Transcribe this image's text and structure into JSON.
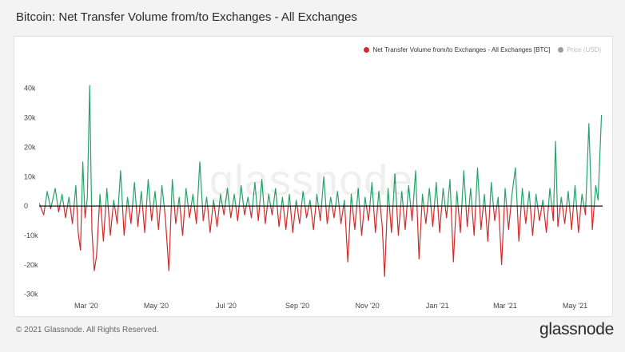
{
  "title": "Bitcoin: Net Transfer Volume from/to Exchanges - All Exchanges",
  "watermark": "glassnode",
  "footer": {
    "copyright": "© 2021 Glassnode. All Rights Reserved.",
    "logo": "glassnode"
  },
  "legend": {
    "series_label": "Net Transfer Volume from/to Exchanges - All Exchanges [BTC]",
    "price_label": "Price (USD)"
  },
  "colors": {
    "positive": "#26a36a",
    "negative": "#d12a2a",
    "legend_dot": "#d62828",
    "price_dot": "#9e9e9e",
    "zero_line": "#111111"
  },
  "chart_data": {
    "type": "line",
    "title": "Bitcoin: Net Transfer Volume from/to Exchanges - All Exchanges",
    "xlabel": "",
    "ylabel": "",
    "x_start": "2020-01-20",
    "x_end": "2021-05-25",
    "ylim": [
      -32000,
      44000
    ],
    "yticks": [
      40000,
      30000,
      20000,
      10000,
      0,
      -10000,
      -20000,
      -30000
    ],
    "ytick_labels": [
      "40k",
      "30k",
      "20k",
      "10k",
      "0",
      "-10k",
      "-20k",
      "-30k"
    ],
    "xticks": [
      "2020-03-01",
      "2020-05-01",
      "2020-07-01",
      "2020-09-01",
      "2020-11-01",
      "2021-01-01",
      "2021-03-01",
      "2021-05-01"
    ],
    "xtick_labels": [
      "Mar '20",
      "May '20",
      "Jul '20",
      "Sep '20",
      "Nov '20",
      "Jan '21",
      "Mar '21",
      "May '21"
    ],
    "grid": false,
    "legend_position": "top-right",
    "series": [
      {
        "name": "Net Transfer Volume from/to Exchanges - All Exchanges [BTC]",
        "points": [
          [
            "2020-01-20",
            1000
          ],
          [
            "2020-01-24",
            -3000
          ],
          [
            "2020-01-27",
            5000
          ],
          [
            "2020-01-30",
            -1000
          ],
          [
            "2020-02-03",
            6000
          ],
          [
            "2020-02-06",
            -2000
          ],
          [
            "2020-02-09",
            4000
          ],
          [
            "2020-02-12",
            -4000
          ],
          [
            "2020-02-15",
            3000
          ],
          [
            "2020-02-18",
            -6000
          ],
          [
            "2020-02-21",
            7000
          ],
          [
            "2020-02-23",
            -9000
          ],
          [
            "2020-02-25",
            -15000
          ],
          [
            "2020-02-27",
            15000
          ],
          [
            "2020-02-29",
            -4000
          ],
          [
            "2020-03-02",
            3000
          ],
          [
            "2020-03-04",
            41000
          ],
          [
            "2020-03-06",
            -8000
          ],
          [
            "2020-03-08",
            -22000
          ],
          [
            "2020-03-10",
            -17000
          ],
          [
            "2020-03-13",
            4000
          ],
          [
            "2020-03-16",
            -12000
          ],
          [
            "2020-03-19",
            6000
          ],
          [
            "2020-03-22",
            -10000
          ],
          [
            "2020-03-25",
            2000
          ],
          [
            "2020-03-28",
            -6000
          ],
          [
            "2020-03-31",
            12000
          ],
          [
            "2020-04-03",
            -10000
          ],
          [
            "2020-04-06",
            3000
          ],
          [
            "2020-04-09",
            -6000
          ],
          [
            "2020-04-12",
            8000
          ],
          [
            "2020-04-15",
            -7000
          ],
          [
            "2020-04-18",
            5000
          ],
          [
            "2020-04-21",
            -9000
          ],
          [
            "2020-04-24",
            9000
          ],
          [
            "2020-04-27",
            -5000
          ],
          [
            "2020-04-30",
            5000
          ],
          [
            "2020-05-03",
            -8000
          ],
          [
            "2020-05-06",
            7000
          ],
          [
            "2020-05-09",
            -4000
          ],
          [
            "2020-05-12",
            -22000
          ],
          [
            "2020-05-15",
            9000
          ],
          [
            "2020-05-18",
            -6000
          ],
          [
            "2020-05-21",
            3000
          ],
          [
            "2020-05-24",
            -10000
          ],
          [
            "2020-05-27",
            6000
          ],
          [
            "2020-05-30",
            -4000
          ],
          [
            "2020-06-02",
            4000
          ],
          [
            "2020-06-05",
            -6000
          ],
          [
            "2020-06-08",
            15000
          ],
          [
            "2020-06-11",
            -5000
          ],
          [
            "2020-06-14",
            3000
          ],
          [
            "2020-06-17",
            -9000
          ],
          [
            "2020-06-20",
            2000
          ],
          [
            "2020-06-23",
            -7000
          ],
          [
            "2020-06-26",
            4000
          ],
          [
            "2020-06-29",
            -3000
          ],
          [
            "2020-07-02",
            6000
          ],
          [
            "2020-07-05",
            -4000
          ],
          [
            "2020-07-08",
            4000
          ],
          [
            "2020-07-11",
            -5000
          ],
          [
            "2020-07-14",
            7000
          ],
          [
            "2020-07-17",
            -3000
          ],
          [
            "2020-07-20",
            3000
          ],
          [
            "2020-07-23",
            -4000
          ],
          [
            "2020-07-26",
            8000
          ],
          [
            "2020-07-29",
            -5000
          ],
          [
            "2020-08-01",
            9000
          ],
          [
            "2020-08-04",
            -6000
          ],
          [
            "2020-08-07",
            4000
          ],
          [
            "2020-08-10",
            -3000
          ],
          [
            "2020-08-13",
            6000
          ],
          [
            "2020-08-16",
            -7000
          ],
          [
            "2020-08-19",
            3000
          ],
          [
            "2020-08-22",
            -8000
          ],
          [
            "2020-08-25",
            4000
          ],
          [
            "2020-08-28",
            -9000
          ],
          [
            "2020-08-31",
            2000
          ],
          [
            "2020-09-03",
            -6000
          ],
          [
            "2020-09-06",
            5000
          ],
          [
            "2020-09-09",
            -4000
          ],
          [
            "2020-09-12",
            2000
          ],
          [
            "2020-09-15",
            -8000
          ],
          [
            "2020-09-18",
            4000
          ],
          [
            "2020-09-21",
            -5000
          ],
          [
            "2020-09-24",
            10000
          ],
          [
            "2020-09-27",
            -6000
          ],
          [
            "2020-09-30",
            3000
          ],
          [
            "2020-10-03",
            -4000
          ],
          [
            "2020-10-06",
            5000
          ],
          [
            "2020-10-09",
            -6000
          ],
          [
            "2020-10-12",
            2000
          ],
          [
            "2020-10-15",
            -19000
          ],
          [
            "2020-10-18",
            4000
          ],
          [
            "2020-10-21",
            -8000
          ],
          [
            "2020-10-24",
            6000
          ],
          [
            "2020-10-27",
            -10000
          ],
          [
            "2020-10-30",
            3000
          ],
          [
            "2020-11-02",
            -5000
          ],
          [
            "2020-11-05",
            8000
          ],
          [
            "2020-11-08",
            -9000
          ],
          [
            "2020-11-11",
            5000
          ],
          [
            "2020-11-14",
            -7000
          ],
          [
            "2020-11-16",
            -24000
          ],
          [
            "2020-11-19",
            6000
          ],
          [
            "2020-11-22",
            -9000
          ],
          [
            "2020-11-25",
            11000
          ],
          [
            "2020-11-28",
            -10000
          ],
          [
            "2020-12-01",
            5000
          ],
          [
            "2020-12-04",
            -8000
          ],
          [
            "2020-12-07",
            7000
          ],
          [
            "2020-12-10",
            -5000
          ],
          [
            "2020-12-13",
            12000
          ],
          [
            "2020-12-16",
            -18000
          ],
          [
            "2020-12-19",
            4000
          ],
          [
            "2020-12-22",
            -6000
          ],
          [
            "2020-12-25",
            6000
          ],
          [
            "2020-12-28",
            -7000
          ],
          [
            "2020-12-31",
            8000
          ],
          [
            "2021-01-03",
            -9000
          ],
          [
            "2021-01-06",
            6000
          ],
          [
            "2021-01-09",
            -4000
          ],
          [
            "2021-01-12",
            9000
          ],
          [
            "2021-01-15",
            -19000
          ],
          [
            "2021-01-18",
            5000
          ],
          [
            "2021-01-21",
            -9000
          ],
          [
            "2021-01-24",
            12000
          ],
          [
            "2021-01-27",
            -7000
          ],
          [
            "2021-01-30",
            6000
          ],
          [
            "2021-02-02",
            -10000
          ],
          [
            "2021-02-05",
            13000
          ],
          [
            "2021-02-08",
            -8000
          ],
          [
            "2021-02-11",
            4000
          ],
          [
            "2021-02-14",
            -12000
          ],
          [
            "2021-02-17",
            8000
          ],
          [
            "2021-02-20",
            -5000
          ],
          [
            "2021-02-23",
            3000
          ],
          [
            "2021-02-26",
            -20000
          ],
          [
            "2021-03-01",
            6000
          ],
          [
            "2021-03-04",
            -8000
          ],
          [
            "2021-03-07",
            4000
          ],
          [
            "2021-03-10",
            13000
          ],
          [
            "2021-03-13",
            -12000
          ],
          [
            "2021-03-16",
            6000
          ],
          [
            "2021-03-19",
            -6000
          ],
          [
            "2021-03-22",
            5000
          ],
          [
            "2021-03-25",
            -10000
          ],
          [
            "2021-03-28",
            4000
          ],
          [
            "2021-03-31",
            -5000
          ],
          [
            "2021-04-03",
            2000
          ],
          [
            "2021-04-06",
            -9000
          ],
          [
            "2021-04-09",
            6000
          ],
          [
            "2021-04-12",
            -5000
          ],
          [
            "2021-04-14",
            22000
          ],
          [
            "2021-04-16",
            -7000
          ],
          [
            "2021-04-19",
            3000
          ],
          [
            "2021-04-22",
            -6000
          ],
          [
            "2021-04-25",
            5000
          ],
          [
            "2021-04-28",
            -8000
          ],
          [
            "2021-05-01",
            7000
          ],
          [
            "2021-05-04",
            -9000
          ],
          [
            "2021-05-07",
            4000
          ],
          [
            "2021-05-10",
            -3000
          ],
          [
            "2021-05-13",
            28000
          ],
          [
            "2021-05-16",
            -8000
          ],
          [
            "2021-05-19",
            7000
          ],
          [
            "2021-05-21",
            2000
          ],
          [
            "2021-05-24",
            31000
          ]
        ]
      }
    ]
  }
}
